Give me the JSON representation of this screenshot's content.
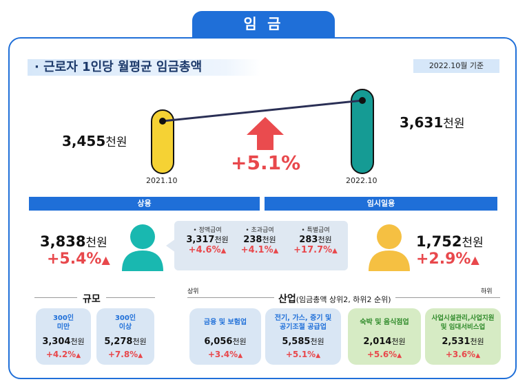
{
  "tab_title": "임 금",
  "heading": "· 근로자 1인당 월평균 임금총액",
  "base_date": "2022.10월 기준",
  "left": {
    "value": "3,455",
    "unit": "천원",
    "date": "2021.10"
  },
  "right": {
    "value": "3,631",
    "unit": "천원",
    "date": "2022.10"
  },
  "change": "+5.1%",
  "colors": {
    "accent": "#1f6fd8",
    "increase": "#e8484c",
    "pillar_2021": "#f5d234",
    "pillar_2022": "#159b94",
    "person_regular": "#19b8b0",
    "person_temp": "#f5c042"
  },
  "regular": {
    "label": "상용",
    "value": "3,838",
    "unit": "천원",
    "pct": "+5.4%",
    "items": [
      {
        "label": "• 정액급여",
        "value": "3,317",
        "unit": "천원",
        "pct": "+4.6%"
      },
      {
        "label": "• 초과급여",
        "value": "238",
        "unit": "천원",
        "pct": "+4.1%"
      },
      {
        "label": "• 특별급여",
        "value": "283",
        "unit": "천원",
        "pct": "+17.7%"
      }
    ]
  },
  "temp": {
    "label": "임시일용",
    "value": "1,752",
    "unit": "천원",
    "pct": "+2.9%"
  },
  "size": {
    "title": "규모",
    "cards": [
      {
        "name": "300인\n미만",
        "value": "3,304",
        "unit": "천원",
        "pct": "+4.2%"
      },
      {
        "name": "300인\n이상",
        "value": "5,278",
        "unit": "천원",
        "pct": "+7.8%"
      }
    ]
  },
  "industry": {
    "title": "산업",
    "subtitle": "(임금총액 상위2, 하위2 순위)",
    "top_label": "상위",
    "bottom_label": "하위",
    "cards": [
      {
        "name": "금융 및 보험업",
        "value": "6,056",
        "unit": "천원",
        "pct": "+3.4%"
      },
      {
        "name": "전기, 가스, 증기 및\n공기조절 공급업",
        "value": "5,585",
        "unit": "천원",
        "pct": "+5.1%"
      },
      {
        "name": "숙박 및 음식점업",
        "value": "2,014",
        "unit": "천원",
        "pct": "+5.6%"
      },
      {
        "name": "사업시설관리,사업지원\n및 임대서비스업",
        "value": "2,531",
        "unit": "천원",
        "pct": "+3.6%"
      }
    ]
  }
}
